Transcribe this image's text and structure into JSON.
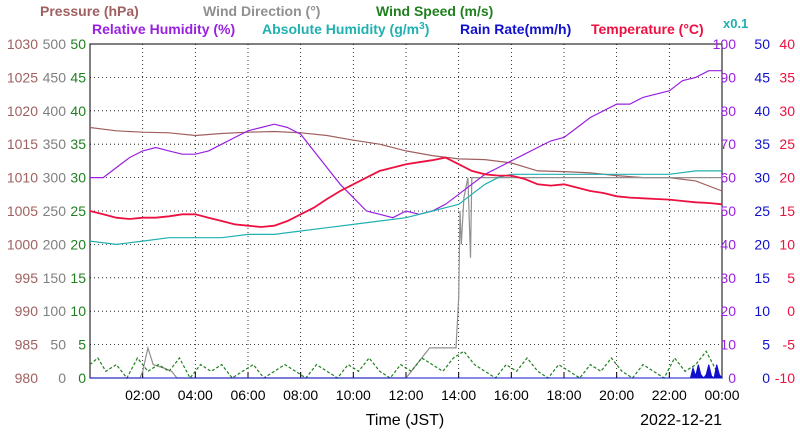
{
  "legend": {
    "row1": [
      {
        "text": "Pressure (hPa)",
        "color": "#a06060"
      },
      {
        "text": "Wind Direction (°)",
        "color": "#909090"
      },
      {
        "text": "Wind Speed (m/s)",
        "color": "#208020"
      }
    ],
    "row2": [
      {
        "text": "Relative Humidity (%)",
        "color": "#9a20e0"
      },
      {
        "text": "Absolute Humidity (g/m",
        "sup": "3",
        "tail": ")",
        "color": "#20b0b0"
      },
      {
        "text": "Rain Rate(mm/h)",
        "color": "#1010cc"
      },
      {
        "text": "Temperature (°C)",
        "color": "#ee1040"
      }
    ],
    "multiplier": "x0.1"
  },
  "xlabel": "Time (JST)",
  "date": "2022-12-21",
  "chart_data": {
    "type": "line",
    "x_ticks": [
      "02:00",
      "04:00",
      "06:00",
      "08:00",
      "10:00",
      "12:00",
      "14:00",
      "16:00",
      "18:00",
      "20:00",
      "22:00",
      "00:00"
    ],
    "x_range_hours": [
      0,
      24
    ],
    "grid": true,
    "axes": [
      {
        "name": "Pressure (hPa)",
        "side": "left",
        "ticks": [
          "1030",
          "1025",
          "1020",
          "1015",
          "1010",
          "1005",
          "1000",
          "995",
          "990",
          "985",
          "980"
        ],
        "ylim": [
          980,
          1030
        ],
        "color": "#a06060"
      },
      {
        "name": "Wind Direction (°)",
        "side": "left",
        "ticks": [
          "500",
          "450",
          "400",
          "350",
          "300",
          "250",
          "200",
          "150",
          "100",
          "50",
          "0"
        ],
        "ylim": [
          0,
          500
        ],
        "color": "#808080"
      },
      {
        "name": "Wind Speed (m/s)",
        "side": "left",
        "ticks": [
          "50",
          "45",
          "40",
          "35",
          "30",
          "25",
          "20",
          "15",
          "10",
          "5",
          "0"
        ],
        "ylim": [
          0,
          50
        ],
        "color": "#208020"
      },
      {
        "name": "Relative Humidity (%)",
        "side": "right",
        "ticks": [
          "100",
          "90",
          "80",
          "70",
          "60",
          "50",
          "40",
          "30",
          "20",
          "10",
          "0"
        ],
        "ylim": [
          0,
          100
        ],
        "color": "#9a20e0"
      },
      {
        "name": "Rain Rate(mm/h)",
        "side": "right",
        "ticks": [
          "50",
          "45",
          "40",
          "35",
          "30",
          "25",
          "20",
          "15",
          "10",
          "5",
          "0"
        ],
        "ylim": [
          0,
          50
        ],
        "color": "#1010cc"
      },
      {
        "name": "Temperature (°C)",
        "side": "right",
        "ticks": [
          "40",
          "35",
          "30",
          "25",
          "20",
          "15",
          "10",
          "5",
          "0",
          "-5",
          "-10"
        ],
        "ylim": [
          -10,
          40
        ],
        "color": "#ee1040"
      }
    ],
    "series": [
      {
        "name": "Pressure (hPa)",
        "axis": 0,
        "color": "#a06060",
        "x": [
          0,
          1,
          2,
          3,
          4,
          5,
          6,
          7,
          8,
          9,
          10,
          11,
          12,
          13,
          14,
          15,
          16,
          17,
          18,
          19,
          20,
          21,
          22,
          23,
          24
        ],
        "y": [
          1017.5,
          1017,
          1016.8,
          1016.7,
          1016.3,
          1016.6,
          1016.8,
          1016.9,
          1016.7,
          1016.3,
          1015.6,
          1015,
          1014,
          1013.3,
          1012.8,
          1012.7,
          1012.2,
          1011,
          1010.9,
          1010.7,
          1010.3,
          1010,
          1010,
          1009.5,
          1008
        ]
      },
      {
        "name": "Wind Direction (°)",
        "axis": 1,
        "color": "#909090",
        "x": [
          0,
          1.9,
          2,
          2.2,
          2.4,
          2.8,
          3.1,
          3.3,
          11,
          12,
          12.4,
          12.9,
          13.9,
          14,
          14.05,
          14.1,
          14.2,
          14.35,
          14.45,
          14.5,
          15,
          16,
          18,
          20,
          22,
          24
        ],
        "y": [
          0,
          0,
          10,
          45,
          20,
          15,
          10,
          0,
          0,
          0,
          20,
          45,
          45,
          120,
          250,
          200,
          270,
          300,
          180,
          300,
          300,
          300,
          300,
          300,
          300,
          300
        ]
      },
      {
        "name": "Wind Speed (m/s)",
        "axis": 2,
        "color": "#208020",
        "x": [
          0,
          0.3,
          0.6,
          1,
          1.4,
          1.8,
          2.2,
          2.6,
          3,
          3.4,
          3.8,
          4.2,
          4.6,
          5,
          5.4,
          5.8,
          6.2,
          6.6,
          7,
          7.4,
          7.8,
          8.2,
          8.6,
          9,
          9.4,
          9.8,
          10.2,
          10.6,
          11,
          11.4,
          11.8,
          12.2,
          12.6,
          13,
          13.4,
          13.8,
          14.2,
          14.6,
          15,
          15.4,
          15.8,
          16.2,
          16.6,
          17,
          17.4,
          17.8,
          18.2,
          18.6,
          19,
          19.4,
          19.8,
          20.2,
          20.6,
          21,
          21.4,
          21.8,
          22.2,
          22.6,
          23,
          23.4,
          23.8
        ],
        "y": [
          2,
          3,
          1,
          2,
          0,
          3,
          1,
          2,
          1,
          3,
          0,
          2,
          1,
          2,
          0,
          1,
          2,
          0,
          1,
          2,
          1,
          0,
          2,
          1,
          0,
          2,
          1,
          3,
          1,
          0,
          2,
          1,
          3,
          2,
          1,
          3,
          4,
          2,
          1,
          0,
          2,
          1,
          3,
          1,
          0,
          2,
          1,
          0,
          2,
          1,
          3,
          1,
          0,
          2,
          1,
          0,
          3,
          1,
          2,
          4,
          1
        ]
      },
      {
        "name": "Relative Humidity (%)",
        "axis": 3,
        "color": "#9a20e0",
        "x": [
          0,
          0.5,
          1,
          1.5,
          2,
          2.5,
          3,
          3.5,
          4,
          4.5,
          5,
          5.5,
          6,
          6.5,
          7,
          7.5,
          8,
          8.5,
          9,
          9.5,
          10,
          10.5,
          11,
          11.5,
          12,
          12.5,
          13,
          13.5,
          14,
          14.5,
          15,
          15.5,
          16,
          16.5,
          17,
          17.5,
          18,
          18.5,
          19,
          19.5,
          20,
          20.5,
          21,
          21.5,
          22,
          22.5,
          23,
          23.5,
          24
        ],
        "y": [
          60,
          60,
          63,
          66,
          68,
          69,
          68,
          67,
          67,
          68,
          70,
          72,
          74,
          75,
          76,
          75,
          73,
          68,
          63,
          58,
          54,
          50,
          49,
          48,
          50,
          49,
          50,
          52,
          55,
          58,
          61,
          63,
          65,
          67,
          69,
          71,
          72,
          75,
          78,
          80,
          82,
          82,
          84,
          85,
          86,
          89,
          90,
          92,
          92
        ]
      },
      {
        "name": "Absolute Humidity (g/m3) x0.1",
        "axis": 3,
        "color": "#20b0b0",
        "x": [
          0,
          1,
          2,
          3,
          4,
          5,
          6,
          7,
          8,
          9,
          10,
          11,
          12,
          13,
          13.5,
          14,
          14.5,
          15,
          15.5,
          16,
          17,
          18,
          19,
          20,
          21,
          22,
          23,
          24
        ],
        "y": [
          41,
          40,
          41,
          42,
          42,
          42,
          43,
          43,
          44,
          45,
          46,
          47,
          48,
          50,
          51,
          52,
          55,
          58,
          60,
          61,
          61,
          61,
          61,
          61,
          61,
          61,
          62,
          62
        ]
      },
      {
        "name": "Rain Rate(mm/h)",
        "axis": 4,
        "color": "#1010cc",
        "x": [
          0,
          22.8,
          22.9,
          23.0,
          23.1,
          23.2,
          23.3,
          23.4,
          23.5,
          23.6,
          23.7,
          23.8,
          23.9,
          24
        ],
        "y": [
          0,
          0,
          1.5,
          0.3,
          2,
          0.5,
          0,
          0.5,
          2,
          0.3,
          0,
          2,
          0.5,
          0
        ]
      },
      {
        "name": "Temperature (°C)",
        "axis": 5,
        "color": "#ee1040",
        "x": [
          0,
          0.5,
          1,
          1.5,
          2,
          2.5,
          3,
          3.5,
          4,
          4.5,
          5,
          5.5,
          6,
          6.5,
          7,
          7.5,
          8,
          8.5,
          9,
          9.5,
          10,
          10.5,
          11,
          11.5,
          12,
          12.5,
          13,
          13.5,
          14,
          14.5,
          15,
          15.5,
          16,
          16.5,
          17,
          17.5,
          18,
          18.5,
          19,
          19.5,
          20,
          20.5,
          21,
          21.5,
          22,
          22.5,
          23,
          23.5,
          24
        ],
        "y": [
          15,
          14.5,
          14,
          13.8,
          14,
          14,
          14.2,
          14.5,
          14.5,
          14,
          13.5,
          13,
          12.8,
          12.6,
          12.8,
          13.5,
          14.5,
          15.5,
          16.8,
          18,
          19,
          20,
          21,
          21.5,
          22,
          22.3,
          22.6,
          23,
          22,
          21,
          20.5,
          20.3,
          20.3,
          19.8,
          19,
          18.8,
          19,
          18.5,
          18,
          17.7,
          17.2,
          17,
          16.9,
          16.8,
          16.7,
          16.5,
          16.3,
          16.2,
          16
        ]
      }
    ]
  }
}
